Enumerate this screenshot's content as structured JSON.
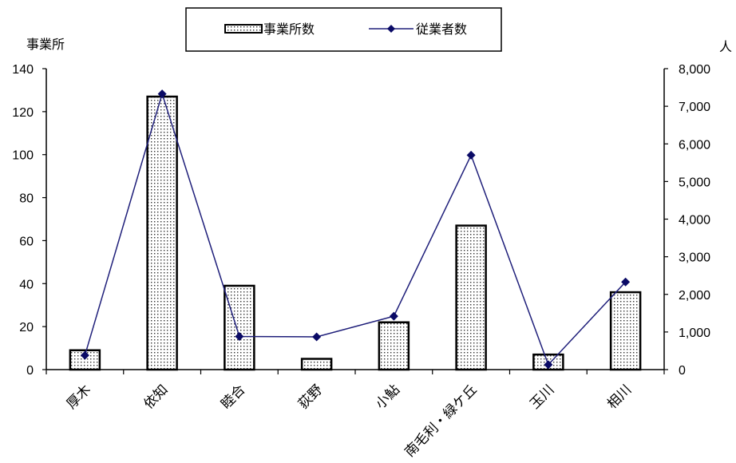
{
  "chart_data": {
    "type": "bar+line",
    "categories": [
      "厚木",
      "依知",
      "睦合",
      "荻野",
      "小鮎",
      "南毛利・緑ケ丘",
      "玉川",
      "相川"
    ],
    "series": [
      {
        "name": "事業所数",
        "type": "bar",
        "axis": "left",
        "values": [
          9,
          127,
          39,
          5,
          22,
          67,
          7,
          36
        ]
      },
      {
        "name": "従業者数",
        "type": "line",
        "axis": "right",
        "values": [
          380,
          7330,
          880,
          870,
          1420,
          5700,
          130,
          2330
        ]
      }
    ],
    "left_axis": {
      "label": "事業所",
      "ylim": [
        0,
        140
      ],
      "ticks": [
        "0",
        "20",
        "40",
        "60",
        "80",
        "100",
        "120",
        "140"
      ]
    },
    "right_axis": {
      "label": "人",
      "ylim": [
        0,
        8000
      ],
      "ticks": [
        "0",
        "1,000",
        "2,000",
        "3,000",
        "4,000",
        "5,000",
        "6,000",
        "7,000",
        "8,000"
      ]
    },
    "legend": {
      "placement": "top-center",
      "items": [
        "事業所数",
        "従業者数"
      ]
    },
    "colors": {
      "line": "#1f1f7a",
      "marker": "#0a0a66",
      "bar_fill_dot": "#333333"
    }
  }
}
